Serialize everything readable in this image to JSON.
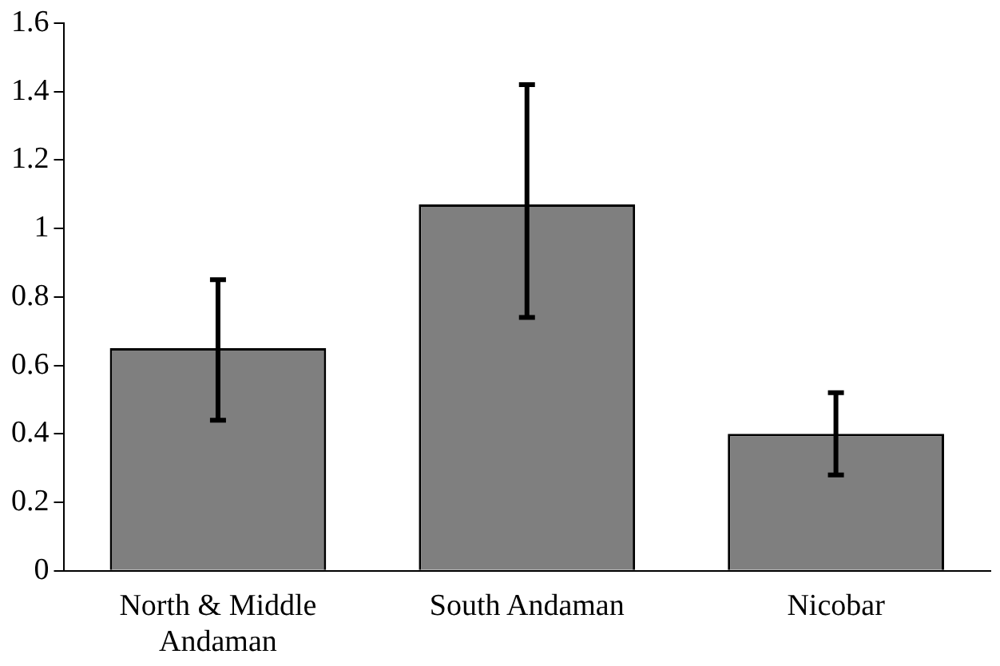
{
  "chart_data": {
    "type": "bar",
    "categories": [
      "North & Middle Andaman",
      "South Andaman",
      "Nicobar"
    ],
    "values": [
      0.65,
      1.07,
      0.4
    ],
    "color": "#7f7f7f",
    "errors": [
      [
        0.44,
        0.85
      ],
      [
        0.74,
        1.42
      ],
      [
        0.28,
        0.52
      ]
    ],
    "ylim": [
      0,
      1.6
    ],
    "yticks": [
      0,
      0.2,
      0.4,
      0.6,
      0.8,
      1,
      1.2,
      1.4,
      1.6
    ],
    "grid": false,
    "legend": false
  }
}
